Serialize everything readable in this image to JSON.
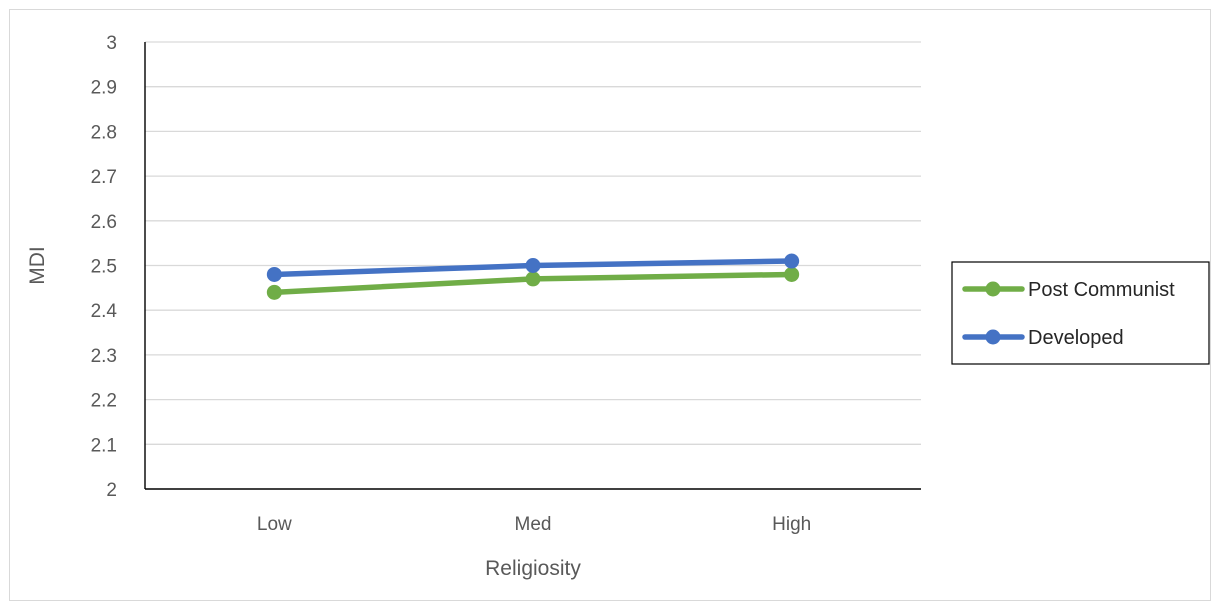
{
  "chart_data": {
    "type": "line",
    "title": "",
    "xlabel": "Religiosity",
    "ylabel": "MDI",
    "categories": [
      "Low",
      "Med",
      "High"
    ],
    "ylim": [
      2,
      3
    ],
    "yticks": [
      "2",
      "2.1",
      "2.2",
      "2.3",
      "2.4",
      "2.5",
      "2.6",
      "2.7",
      "2.8",
      "2.9",
      "3"
    ],
    "grid": true,
    "legend_position": "right",
    "series": [
      {
        "name": "Post Communist",
        "values": [
          2.44,
          2.47,
          2.48
        ],
        "color": "#70ad47"
      },
      {
        "name": "Developed",
        "values": [
          2.48,
          2.5,
          2.51
        ],
        "color": "#4472c4"
      }
    ]
  }
}
